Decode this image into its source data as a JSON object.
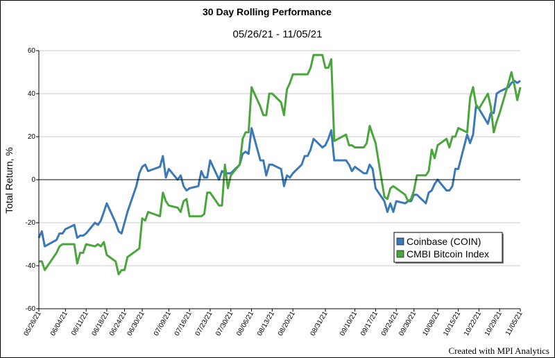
{
  "chart_data": {
    "type": "line",
    "title": "30 Day Rolling Performance",
    "subtitle": "05/26/21 - 11/05/21",
    "ylabel": "Total Return, %",
    "xlabel": "",
    "ylim": [
      -60,
      60
    ],
    "yticks": [
      -60,
      -40,
      -20,
      0,
      20,
      40,
      60
    ],
    "xlim": [
      "05/26/21",
      "11/05/21"
    ],
    "xticks": [
      "05/26/21",
      "06/04/21",
      "06/11/21",
      "06/18/21",
      "06/24/21",
      "06/30/21",
      "07/09/21",
      "07/16/21",
      "07/23/21",
      "07/30/21",
      "08/06/21",
      "08/13/21",
      "08/20/21",
      "08/31/21",
      "09/10/21",
      "09/17/21",
      "09/24/21",
      "09/30/21",
      "10/08/21",
      "10/15/21",
      "10/22/21",
      "10/29/21",
      "11/05/21"
    ],
    "grid": true,
    "legend_position": "bottom-right",
    "series": [
      {
        "name": "Coinbase (COIN)",
        "color": "#3a78b8",
        "points": [
          [
            "05/26/21",
            -27
          ],
          [
            "05/27/21",
            -24
          ],
          [
            "05/28/21",
            -31
          ],
          [
            "06/01/21",
            -28
          ],
          [
            "06/02/21",
            -25
          ],
          [
            "06/03/21",
            -25
          ],
          [
            "06/04/21",
            -23
          ],
          [
            "06/07/21",
            -21
          ],
          [
            "06/08/21",
            -27
          ],
          [
            "06/09/21",
            -26
          ],
          [
            "06/10/21",
            -26
          ],
          [
            "06/11/21",
            -25
          ],
          [
            "06/14/21",
            -20
          ],
          [
            "06/15/21",
            -21
          ],
          [
            "06/16/21",
            -19
          ],
          [
            "06/17/21",
            -15
          ],
          [
            "06/18/21",
            -11
          ],
          [
            "06/21/21",
            -20
          ],
          [
            "06/22/21",
            -24
          ],
          [
            "06/23/21",
            -25
          ],
          [
            "06/24/21",
            -20
          ],
          [
            "06/25/21",
            -15
          ],
          [
            "06/28/21",
            -3
          ],
          [
            "06/29/21",
            3
          ],
          [
            "06/30/21",
            6
          ],
          [
            "07/01/21",
            7
          ],
          [
            "07/02/21",
            4
          ],
          [
            "07/06/21",
            6
          ],
          [
            "07/07/21",
            11
          ],
          [
            "07/08/21",
            1
          ],
          [
            "07/09/21",
            5
          ],
          [
            "07/12/21",
            0
          ],
          [
            "07/13/21",
            2
          ],
          [
            "07/14/21",
            -3
          ],
          [
            "07/15/21",
            -5
          ],
          [
            "07/16/21",
            -4
          ],
          [
            "07/19/21",
            -3
          ],
          [
            "07/20/21",
            4
          ],
          [
            "07/21/21",
            1
          ],
          [
            "07/22/21",
            1
          ],
          [
            "07/23/21",
            9
          ],
          [
            "07/26/21",
            0
          ],
          [
            "07/27/21",
            4
          ],
          [
            "07/28/21",
            3
          ],
          [
            "07/29/21",
            3
          ],
          [
            "07/30/21",
            3
          ],
          [
            "08/02/21",
            7
          ],
          [
            "08/03/21",
            12
          ],
          [
            "08/04/21",
            13
          ],
          [
            "08/05/21",
            12
          ],
          [
            "08/06/21",
            24
          ],
          [
            "08/09/21",
            9
          ],
          [
            "08/10/21",
            9
          ],
          [
            "08/11/21",
            2
          ],
          [
            "08/12/21",
            7
          ],
          [
            "08/13/21",
            7
          ],
          [
            "08/16/21",
            5
          ],
          [
            "08/17/21",
            -3
          ],
          [
            "08/18/21",
            2
          ],
          [
            "08/19/21",
            1
          ],
          [
            "08/20/21",
            3
          ],
          [
            "08/23/21",
            7
          ],
          [
            "08/24/21",
            11
          ],
          [
            "08/25/21",
            11
          ],
          [
            "08/26/21",
            14
          ],
          [
            "08/27/21",
            19
          ],
          [
            "08/30/21",
            15
          ],
          [
            "08/31/21",
            16
          ],
          [
            "09/01/21",
            19
          ],
          [
            "09/02/21",
            23
          ],
          [
            "09/03/21",
            9
          ],
          [
            "09/07/21",
            9
          ],
          [
            "09/08/21",
            7
          ],
          [
            "09/09/21",
            4
          ],
          [
            "09/10/21",
            6
          ],
          [
            "09/13/21",
            3
          ],
          [
            "09/14/21",
            3
          ],
          [
            "09/15/21",
            7
          ],
          [
            "09/16/21",
            5
          ],
          [
            "09/17/21",
            -4
          ],
          [
            "09/20/21",
            -10
          ],
          [
            "09/21/21",
            -15
          ],
          [
            "09/22/21",
            -11
          ],
          [
            "09/23/21",
            -15
          ],
          [
            "09/24/21",
            -10
          ],
          [
            "09/27/21",
            -11
          ],
          [
            "09/28/21",
            -10
          ],
          [
            "09/29/21",
            -10
          ],
          [
            "09/30/21",
            -7
          ],
          [
            "10/01/21",
            -7
          ],
          [
            "10/04/21",
            -11
          ],
          [
            "10/05/21",
            -6
          ],
          [
            "10/06/21",
            -5
          ],
          [
            "10/07/21",
            -2
          ],
          [
            "10/08/21",
            0
          ],
          [
            "10/11/21",
            -5
          ],
          [
            "10/12/21",
            -5
          ],
          [
            "10/13/21",
            -3
          ],
          [
            "10/14/21",
            5
          ],
          [
            "10/15/21",
            5
          ],
          [
            "10/18/21",
            21
          ],
          [
            "10/19/21",
            17
          ],
          [
            "10/20/21",
            21
          ],
          [
            "10/21/21",
            34
          ],
          [
            "10/22/21",
            33
          ],
          [
            "10/25/21",
            26
          ],
          [
            "10/26/21",
            31
          ],
          [
            "10/27/21",
            31
          ],
          [
            "10/28/21",
            40
          ],
          [
            "10/29/21",
            41
          ],
          [
            "11/01/21",
            43
          ],
          [
            "11/02/21",
            45
          ],
          [
            "11/03/21",
            46
          ],
          [
            "11/04/21",
            45
          ],
          [
            "11/05/21",
            46
          ]
        ]
      },
      {
        "name": "CMBI Bitcoin Index",
        "color": "#4aa63c",
        "points": [
          [
            "05/26/21",
            -38
          ],
          [
            "05/27/21",
            -38
          ],
          [
            "05/28/21",
            -42
          ],
          [
            "06/01/21",
            -34
          ],
          [
            "06/02/21",
            -31
          ],
          [
            "06/03/21",
            -30
          ],
          [
            "06/04/21",
            -30
          ],
          [
            "06/07/21",
            -30
          ],
          [
            "06/08/21",
            -39
          ],
          [
            "06/09/21",
            -34
          ],
          [
            "06/10/21",
            -34
          ],
          [
            "06/11/21",
            -30
          ],
          [
            "06/14/21",
            -31
          ],
          [
            "06/15/21",
            -30
          ],
          [
            "06/16/21",
            -31
          ],
          [
            "06/17/21",
            -29
          ],
          [
            "06/18/21",
            -35
          ],
          [
            "06/21/21",
            -38
          ],
          [
            "06/22/21",
            -44
          ],
          [
            "06/23/21",
            -42
          ],
          [
            "06/24/21",
            -42
          ],
          [
            "06/25/21",
            -36
          ],
          [
            "06/28/21",
            -33
          ],
          [
            "06/29/21",
            -32
          ],
          [
            "06/30/21",
            -18
          ],
          [
            "07/01/21",
            -19
          ],
          [
            "07/02/21",
            -15
          ],
          [
            "07/06/21",
            -17
          ],
          [
            "07/07/21",
            -6
          ],
          [
            "07/08/21",
            -10
          ],
          [
            "07/09/21",
            -12
          ],
          [
            "07/12/21",
            -13
          ],
          [
            "07/13/21",
            -15
          ],
          [
            "07/14/21",
            -10
          ],
          [
            "07/15/21",
            -9
          ],
          [
            "07/16/21",
            -17
          ],
          [
            "07/19/21",
            -17
          ],
          [
            "07/20/21",
            -17
          ],
          [
            "07/21/21",
            -16
          ],
          [
            "07/22/21",
            -6
          ],
          [
            "07/23/21",
            -6
          ],
          [
            "07/26/21",
            -12
          ],
          [
            "07/27/21",
            -12
          ],
          [
            "07/28/21",
            7
          ],
          [
            "07/29/21",
            -4
          ],
          [
            "07/30/21",
            2
          ],
          [
            "08/02/21",
            7
          ],
          [
            "08/03/21",
            19
          ],
          [
            "08/04/21",
            22
          ],
          [
            "08/05/21",
            22
          ],
          [
            "08/06/21",
            43
          ],
          [
            "08/09/21",
            34
          ],
          [
            "08/10/21",
            30
          ],
          [
            "08/11/21",
            30
          ],
          [
            "08/12/21",
            40
          ],
          [
            "08/13/21",
            40
          ],
          [
            "08/16/21",
            36
          ],
          [
            "08/17/21",
            30
          ],
          [
            "08/18/21",
            42
          ],
          [
            "08/19/21",
            45
          ],
          [
            "08/20/21",
            49
          ],
          [
            "08/23/21",
            49
          ],
          [
            "08/24/21",
            49
          ],
          [
            "08/25/21",
            49
          ],
          [
            "08/26/21",
            52
          ],
          [
            "08/27/21",
            58
          ],
          [
            "08/30/21",
            58
          ],
          [
            "08/31/21",
            52
          ],
          [
            "09/01/21",
            52
          ],
          [
            "09/02/21",
            56
          ],
          [
            "09/03/21",
            18
          ],
          [
            "09/07/21",
            21
          ],
          [
            "09/08/21",
            16
          ],
          [
            "09/09/21",
            16
          ],
          [
            "09/10/21",
            15
          ],
          [
            "09/13/21",
            15
          ],
          [
            "09/14/21",
            17
          ],
          [
            "09/15/21",
            25
          ],
          [
            "09/16/21",
            21
          ],
          [
            "09/17/21",
            17
          ],
          [
            "09/20/21",
            -8
          ],
          [
            "09/21/21",
            -9
          ],
          [
            "09/22/21",
            -4
          ],
          [
            "09/23/21",
            -3
          ],
          [
            "09/24/21",
            -4
          ],
          [
            "09/27/21",
            -7
          ],
          [
            "09/28/21",
            -10
          ],
          [
            "09/29/21",
            -9
          ],
          [
            "09/30/21",
            -5
          ],
          [
            "10/01/21",
            2
          ],
          [
            "10/04/21",
            2
          ],
          [
            "10/05/21",
            4
          ],
          [
            "10/06/21",
            14
          ],
          [
            "10/07/21",
            10
          ],
          [
            "10/08/21",
            16
          ],
          [
            "10/11/21",
            19
          ],
          [
            "10/12/21",
            15
          ],
          [
            "10/13/21",
            20
          ],
          [
            "10/14/21",
            20
          ],
          [
            "10/15/21",
            24
          ],
          [
            "10/18/21",
            22
          ],
          [
            "10/19/21",
            38
          ],
          [
            "10/20/21",
            43
          ],
          [
            "10/21/21",
            35
          ],
          [
            "10/22/21",
            33
          ],
          [
            "10/25/21",
            40
          ],
          [
            "10/26/21",
            34
          ],
          [
            "10/27/21",
            22
          ],
          [
            "10/28/21",
            27
          ],
          [
            "10/29/21",
            31
          ],
          [
            "11/01/21",
            45
          ],
          [
            "11/02/21",
            50
          ],
          [
            "11/03/21",
            44
          ],
          [
            "11/04/21",
            37
          ],
          [
            "11/05/21",
            43
          ]
        ]
      }
    ]
  },
  "footer": {
    "credit": "Created with MPI Analytics"
  }
}
